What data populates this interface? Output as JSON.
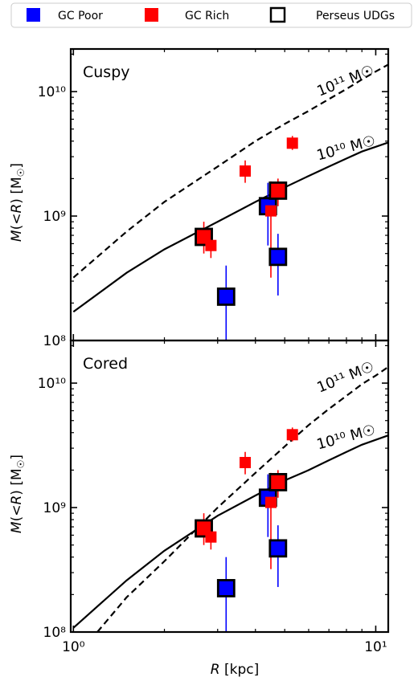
{
  "legend": {
    "position": "top",
    "items": [
      {
        "label": "GC Poor",
        "color": "#0000ff",
        "kind": "filled-square"
      },
      {
        "label": "GC Rich",
        "color": "#ff0000",
        "kind": "filled-square"
      },
      {
        "label": "Perseus UDGs",
        "color": "#000000",
        "kind": "open-square"
      }
    ]
  },
  "chart_data": [
    {
      "type": "scatter",
      "title": "Cuspy",
      "xlabel": "R [kpc]",
      "ylabel": "M(<R) [M☉]",
      "xscale": "log",
      "yscale": "log",
      "xlim": [
        0.98,
        11.0
      ],
      "ylim": [
        100000000.0,
        22000000000.0
      ],
      "xticks": [
        {
          "value": 1,
          "label": "10⁰"
        },
        {
          "value": 10,
          "label": "10¹"
        }
      ],
      "yticks": [
        {
          "value": 100000000.0,
          "label": "10⁸"
        },
        {
          "value": 1000000000.0,
          "label": "10⁹"
        },
        {
          "value": 10000000000.0,
          "label": "10¹⁰"
        }
      ],
      "lines": [
        {
          "label": "10¹¹ M☉",
          "style": "dashed",
          "points": [
            [
              1.0,
              320000000.0
            ],
            [
              1.5,
              750000000.0
            ],
            [
              2.0,
              1300000000.0
            ],
            [
              3.0,
              2500000000.0
            ],
            [
              4.0,
              4000000000.0
            ],
            [
              5.0,
              5500000000.0
            ],
            [
              6.0,
              7000000000.0
            ],
            [
              7.0,
              8700000000.0
            ],
            [
              8.0,
              10500000000.0
            ],
            [
              9.0,
              12500000000.0
            ],
            [
              10.0,
              14500000000.0
            ],
            [
              11.0,
              16500000000.0
            ]
          ]
        },
        {
          "label": "10¹⁰ M☉",
          "style": "solid",
          "points": [
            [
              1.0,
              170000000.0
            ],
            [
              1.5,
              350000000.0
            ],
            [
              2.0,
              540000000.0
            ],
            [
              3.0,
              900000000.0
            ],
            [
              4.0,
              1300000000.0
            ],
            [
              5.0,
              1700000000.0
            ],
            [
              6.0,
              2100000000.0
            ],
            [
              7.0,
              2500000000.0
            ],
            [
              8.0,
              2900000000.0
            ],
            [
              9.0,
              3300000000.0
            ],
            [
              10.0,
              3600000000.0
            ],
            [
              11.0,
              3900000000.0
            ]
          ]
        }
      ],
      "series": [
        {
          "name": "GC Poor",
          "color": "#0000ff",
          "points": [
            {
              "x": 3.2,
              "y": 225000000.0,
              "ylo": 100000000.0,
              "yhi": 400000000.0,
              "udg": true
            },
            {
              "x": 4.4,
              "y": 1200000000.0,
              "ylo": 580000000.0,
              "yhi": 1850000000.0,
              "udg": true
            },
            {
              "x": 4.75,
              "y": 470000000.0,
              "ylo": 230000000.0,
              "yhi": 720000000.0,
              "udg": true
            }
          ]
        },
        {
          "name": "GC Rich",
          "color": "#ff0000",
          "points": [
            {
              "x": 2.7,
              "y": 680000000.0,
              "ylo": 500000000.0,
              "yhi": 900000000.0,
              "udg": true
            },
            {
              "x": 2.85,
              "y": 580000000.0,
              "ylo": 460000000.0,
              "yhi": 720000000.0,
              "udg": false
            },
            {
              "x": 3.7,
              "y": 2300000000.0,
              "ylo": 1850000000.0,
              "yhi": 2800000000.0,
              "udg": false
            },
            {
              "x": 4.5,
              "y": 1100000000.0,
              "ylo": 320000000.0,
              "yhi": 1900000000.0,
              "udg": false
            },
            {
              "x": 4.75,
              "y": 1600000000.0,
              "ylo": 1200000000.0,
              "yhi": 2000000000.0,
              "udg": true
            },
            {
              "x": 5.3,
              "y": 3850000000.0,
              "ylo": 3400000000.0,
              "yhi": 4400000000.0,
              "udg": false
            }
          ]
        }
      ]
    },
    {
      "type": "scatter",
      "title": "Cored",
      "xlabel": "R [kpc]",
      "ylabel": "M(<R) [M☉]",
      "xscale": "log",
      "yscale": "log",
      "xlim": [
        0.98,
        11.0
      ],
      "ylim": [
        100000000.0,
        22000000000.0
      ],
      "xticks": [
        {
          "value": 1,
          "label": "10⁰"
        },
        {
          "value": 10,
          "label": "10¹"
        }
      ],
      "yticks": [
        {
          "value": 100000000.0,
          "label": "10⁸"
        },
        {
          "value": 1000000000.0,
          "label": "10⁹"
        },
        {
          "value": 10000000000.0,
          "label": "10¹⁰"
        }
      ],
      "lines": [
        {
          "label": "10¹¹ M☉",
          "style": "dashed",
          "points": [
            [
              1.2,
              100000000.0
            ],
            [
              1.5,
              190000000.0
            ],
            [
              2.0,
              370000000.0
            ],
            [
              3.0,
              1000000000.0
            ],
            [
              4.0,
              1900000000.0
            ],
            [
              5.0,
              3100000000.0
            ],
            [
              6.0,
              4600000000.0
            ],
            [
              7.0,
              6200000000.0
            ],
            [
              8.0,
              7900000000.0
            ],
            [
              9.0,
              9800000000.0
            ],
            [
              10.0,
              11500000000.0
            ],
            [
              11.0,
              13500000000.0
            ]
          ]
        },
        {
          "label": "10¹⁰ M☉",
          "style": "solid",
          "points": [
            [
              1.0,
              108000000.0
            ],
            [
              1.5,
              260000000.0
            ],
            [
              2.0,
              450000000.0
            ],
            [
              3.0,
              860000000.0
            ],
            [
              4.0,
              1250000000.0
            ],
            [
              5.0,
              1650000000.0
            ],
            [
              6.0,
              2000000000.0
            ],
            [
              7.0,
              2400000000.0
            ],
            [
              8.0,
              2800000000.0
            ],
            [
              9.0,
              3200000000.0
            ],
            [
              10.0,
              3500000000.0
            ],
            [
              11.0,
              3800000000.0
            ]
          ]
        }
      ],
      "series": [
        {
          "name": "GC Poor",
          "color": "#0000ff",
          "points": [
            {
              "x": 3.2,
              "y": 225000000.0,
              "ylo": 100000000.0,
              "yhi": 400000000.0,
              "udg": true
            },
            {
              "x": 4.4,
              "y": 1200000000.0,
              "ylo": 580000000.0,
              "yhi": 1850000000.0,
              "udg": true
            },
            {
              "x": 4.75,
              "y": 470000000.0,
              "ylo": 230000000.0,
              "yhi": 720000000.0,
              "udg": true
            }
          ]
        },
        {
          "name": "GC Rich",
          "color": "#ff0000",
          "points": [
            {
              "x": 2.7,
              "y": 680000000.0,
              "ylo": 500000000.0,
              "yhi": 900000000.0,
              "udg": true
            },
            {
              "x": 2.85,
              "y": 580000000.0,
              "ylo": 460000000.0,
              "yhi": 720000000.0,
              "udg": false
            },
            {
              "x": 3.7,
              "y": 2300000000.0,
              "ylo": 1850000000.0,
              "yhi": 2800000000.0,
              "udg": false
            },
            {
              "x": 4.5,
              "y": 1100000000.0,
              "ylo": 320000000.0,
              "yhi": 1900000000.0,
              "udg": false
            },
            {
              "x": 4.75,
              "y": 1600000000.0,
              "ylo": 1200000000.0,
              "yhi": 2000000000.0,
              "udg": true
            },
            {
              "x": 5.3,
              "y": 3850000000.0,
              "ylo": 3400000000.0,
              "yhi": 4400000000.0,
              "udg": false
            }
          ]
        }
      ]
    }
  ]
}
